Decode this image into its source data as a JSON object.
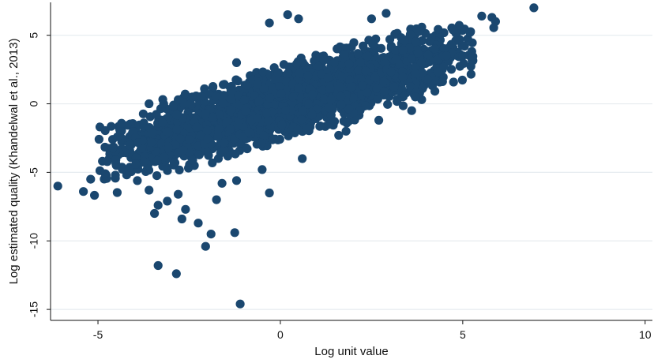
{
  "chart_data": {
    "type": "scatter",
    "title": "",
    "xlabel": "Log unit value",
    "ylabel": "Log estimated quality (Khandelwal et al., 2013)",
    "xlim": [
      -6.3,
      10.2
    ],
    "ylim": [
      -15.8,
      7.4
    ],
    "xticks": [
      -5,
      0,
      5,
      10
    ],
    "yticks": [
      5,
      0,
      -5,
      -10,
      -15
    ],
    "grid": "horizontal",
    "legend": "none",
    "marker_color": "#1a476f",
    "background": "#ffffff",
    "series": [
      {
        "name": "",
        "cluster": {
          "count": 2600,
          "x_range": [
            -5.2,
            5.6
          ],
          "slope": 0.78,
          "intercept": 0.0,
          "spread": 1.55,
          "seed": 13
        },
        "points": [
          {
            "x": -6.1,
            "y": -6.0
          },
          {
            "x": -5.4,
            "y": -6.4
          },
          {
            "x": -5.2,
            "y": -5.5
          },
          {
            "x": -4.8,
            "y": -5.1
          },
          {
            "x": -4.6,
            "y": -3.2
          },
          {
            "x": -3.6,
            "y": -6.3
          },
          {
            "x": -3.45,
            "y": -8.0
          },
          {
            "x": -3.35,
            "y": -7.4
          },
          {
            "x": -3.1,
            "y": -7.1
          },
          {
            "x": -2.8,
            "y": -6.6
          },
          {
            "x": -2.7,
            "y": -8.4
          },
          {
            "x": -2.6,
            "y": -7.7
          },
          {
            "x": -2.25,
            "y": -8.7
          },
          {
            "x": -2.05,
            "y": -10.4
          },
          {
            "x": -1.9,
            "y": -9.5
          },
          {
            "x": -1.75,
            "y": -7.0
          },
          {
            "x": -1.25,
            "y": -9.4
          },
          {
            "x": -3.35,
            "y": -11.8
          },
          {
            "x": -2.85,
            "y": -12.4
          },
          {
            "x": -1.1,
            "y": -14.6
          },
          {
            "x": -0.3,
            "y": -6.5
          },
          {
            "x": -1.2,
            "y": -5.6
          },
          {
            "x": -3.6,
            "y": 0.0
          },
          {
            "x": -3.2,
            "y": 0.0
          },
          {
            "x": -2.8,
            "y": 0.3
          },
          {
            "x": -1.2,
            "y": 3.0
          },
          {
            "x": -0.3,
            "y": 5.9
          },
          {
            "x": 0.2,
            "y": 6.5
          },
          {
            "x": 0.5,
            "y": 6.2
          },
          {
            "x": 2.5,
            "y": 6.2
          },
          {
            "x": 2.9,
            "y": 6.6
          },
          {
            "x": 3.6,
            "y": -0.5
          },
          {
            "x": 3.7,
            "y": 0.5
          },
          {
            "x": 5.0,
            "y": 3.5
          },
          {
            "x": 5.2,
            "y": 5.2
          },
          {
            "x": 5.8,
            "y": 6.3
          },
          {
            "x": 5.9,
            "y": 6.0
          },
          {
            "x": 5.85,
            "y": 5.55
          },
          {
            "x": 6.95,
            "y": 7.0
          },
          {
            "x": 2.7,
            "y": -1.2
          },
          {
            "x": 1.8,
            "y": -2.0
          },
          {
            "x": 0.6,
            "y": -4.0
          },
          {
            "x": -0.5,
            "y": -4.8
          },
          {
            "x": 1.6,
            "y": -2.3
          },
          {
            "x": -1.6,
            "y": -5.8
          }
        ]
      }
    ]
  }
}
